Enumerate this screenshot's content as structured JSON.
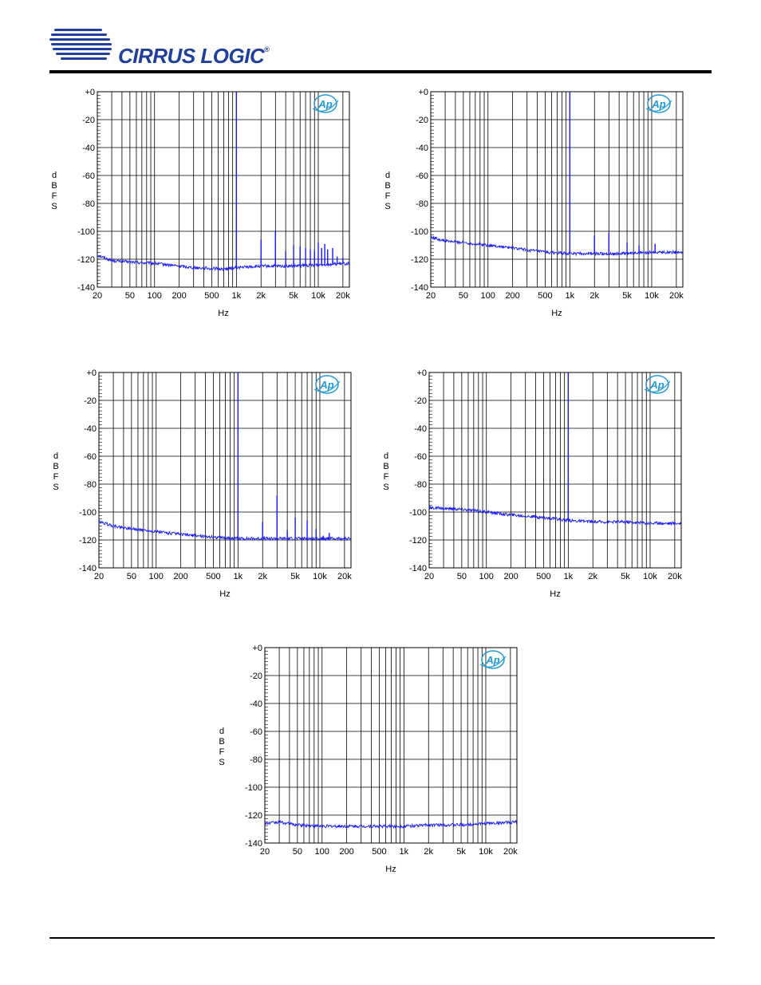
{
  "header": {
    "brand": "CIRRUS LOGIC",
    "brand_mark": "®",
    "logo_color": "#1f3f9a"
  },
  "colors": {
    "trace": "#1a1aff",
    "grid": "#000000",
    "ap_logo": "#1f9bd6"
  },
  "chart_data": [
    {
      "type": "line",
      "ap_badge": "Ap",
      "xlabel": "Hz",
      "ylabel": "dBFS",
      "xscale": "log",
      "xlim": [
        20,
        24000
      ],
      "ylim": [
        -140,
        0
      ],
      "x_ticks": [
        "20",
        "50",
        "100",
        "200",
        "500",
        "1k",
        "2k",
        "5k",
        "10k",
        "20k"
      ],
      "y_ticks": [
        "+0",
        "-20",
        "-40",
        "-60",
        "-80",
        "-100",
        "-120",
        "-140"
      ],
      "noise_floor": [
        [
          20,
          -117
        ],
        [
          30,
          -121
        ],
        [
          50,
          -122
        ],
        [
          100,
          -123
        ],
        [
          300,
          -126
        ],
        [
          700,
          -127
        ],
        [
          1000,
          -126
        ],
        [
          2000,
          -125
        ],
        [
          5000,
          -125
        ],
        [
          10000,
          -124
        ],
        [
          24000,
          -123
        ]
      ],
      "peaks": [
        [
          1000,
          0
        ],
        [
          2000,
          -106
        ],
        [
          3000,
          -100
        ],
        [
          4000,
          -114
        ],
        [
          5000,
          -110
        ],
        [
          6000,
          -111
        ],
        [
          7000,
          -112
        ],
        [
          8000,
          -113
        ],
        [
          9000,
          -114
        ],
        [
          10000,
          -108
        ],
        [
          11000,
          -112
        ],
        [
          12000,
          -109
        ],
        [
          13000,
          -113
        ],
        [
          15000,
          -112
        ],
        [
          17000,
          -118
        ],
        [
          20000,
          -119
        ]
      ]
    },
    {
      "type": "line",
      "ap_badge": "Ap",
      "xlabel": "Hz",
      "ylabel": "dBFS",
      "xscale": "log",
      "xlim": [
        20,
        24000
      ],
      "ylim": [
        -140,
        0
      ],
      "x_ticks": [
        "20",
        "50",
        "100",
        "200",
        "500",
        "1k",
        "2k",
        "5k",
        "10k",
        "20k"
      ],
      "y_ticks": [
        "+0",
        "-20",
        "-40",
        "-60",
        "-80",
        "-100",
        "-120",
        "-140"
      ],
      "noise_floor": [
        [
          20,
          -104
        ],
        [
          30,
          -107
        ],
        [
          50,
          -108
        ],
        [
          100,
          -110
        ],
        [
          200,
          -112
        ],
        [
          500,
          -115
        ],
        [
          1000,
          -116
        ],
        [
          2000,
          -116
        ],
        [
          5000,
          -116
        ],
        [
          10000,
          -115
        ],
        [
          24000,
          -115
        ]
      ],
      "peaks": [
        [
          1000,
          0
        ],
        [
          2000,
          -103
        ],
        [
          3000,
          -101
        ],
        [
          5000,
          -108
        ],
        [
          7000,
          -110
        ],
        [
          11000,
          -109
        ]
      ]
    },
    {
      "type": "line",
      "ap_badge": "Ap",
      "xlabel": "Hz",
      "ylabel": "dBFS",
      "xscale": "log",
      "xlim": [
        20,
        24000
      ],
      "ylim": [
        -140,
        0
      ],
      "x_ticks": [
        "20",
        "50",
        "100",
        "200",
        "500",
        "1k",
        "2k",
        "5k",
        "10k",
        "20k"
      ],
      "y_ticks": [
        "+0",
        "-20",
        "-40",
        "-60",
        "-80",
        "-100",
        "-120",
        "-140"
      ],
      "noise_floor": [
        [
          20,
          -107
        ],
        [
          30,
          -110
        ],
        [
          50,
          -112
        ],
        [
          100,
          -114
        ],
        [
          200,
          -116
        ],
        [
          500,
          -118
        ],
        [
          1000,
          -119
        ],
        [
          2000,
          -119
        ],
        [
          5000,
          -119
        ],
        [
          10000,
          -119
        ],
        [
          24000,
          -119
        ]
      ],
      "peaks": [
        [
          1000,
          0
        ],
        [
          2000,
          -107
        ],
        [
          3000,
          -88
        ],
        [
          4000,
          -113
        ],
        [
          5000,
          -104
        ],
        [
          7000,
          -106
        ],
        [
          9000,
          -112
        ],
        [
          11000,
          -117
        ],
        [
          13000,
          -115
        ]
      ]
    },
    {
      "type": "line",
      "ap_badge": "Ap",
      "xlabel": "Hz",
      "ylabel": "dBFS",
      "xscale": "log",
      "xlim": [
        20,
        24000
      ],
      "ylim": [
        -140,
        0
      ],
      "x_ticks": [
        "20",
        "50",
        "100",
        "200",
        "500",
        "1k",
        "2k",
        "5k",
        "10k",
        "20k"
      ],
      "y_ticks": [
        "+0",
        "-20",
        "-40",
        "-60",
        "-80",
        "-100",
        "-120",
        "-140"
      ],
      "noise_floor": [
        [
          20,
          -97
        ],
        [
          50,
          -98
        ],
        [
          100,
          -100
        ],
        [
          200,
          -102
        ],
        [
          500,
          -104
        ],
        [
          1000,
          -106
        ],
        [
          2000,
          -107
        ],
        [
          5000,
          -107
        ],
        [
          10000,
          -108
        ],
        [
          24000,
          -108
        ]
      ],
      "peaks": [
        [
          1000,
          0
        ]
      ]
    },
    {
      "type": "line",
      "ap_badge": "Ap",
      "xlabel": "Hz",
      "ylabel": "dBFS",
      "xscale": "log",
      "xlim": [
        20,
        24000
      ],
      "ylim": [
        -140,
        0
      ],
      "x_ticks": [
        "20",
        "50",
        "100",
        "200",
        "500",
        "1k",
        "2k",
        "5k",
        "10k",
        "20k"
      ],
      "y_ticks": [
        "+0",
        "-20",
        "-40",
        "-60",
        "-80",
        "-100",
        "-120",
        "-140"
      ],
      "noise_floor": [
        [
          20,
          -126
        ],
        [
          30,
          -125
        ],
        [
          50,
          -127
        ],
        [
          100,
          -128
        ],
        [
          200,
          -128
        ],
        [
          500,
          -128
        ],
        [
          1000,
          -128
        ],
        [
          2000,
          -127
        ],
        [
          5000,
          -127
        ],
        [
          10000,
          -126
        ],
        [
          24000,
          -125
        ]
      ],
      "peaks": []
    }
  ]
}
